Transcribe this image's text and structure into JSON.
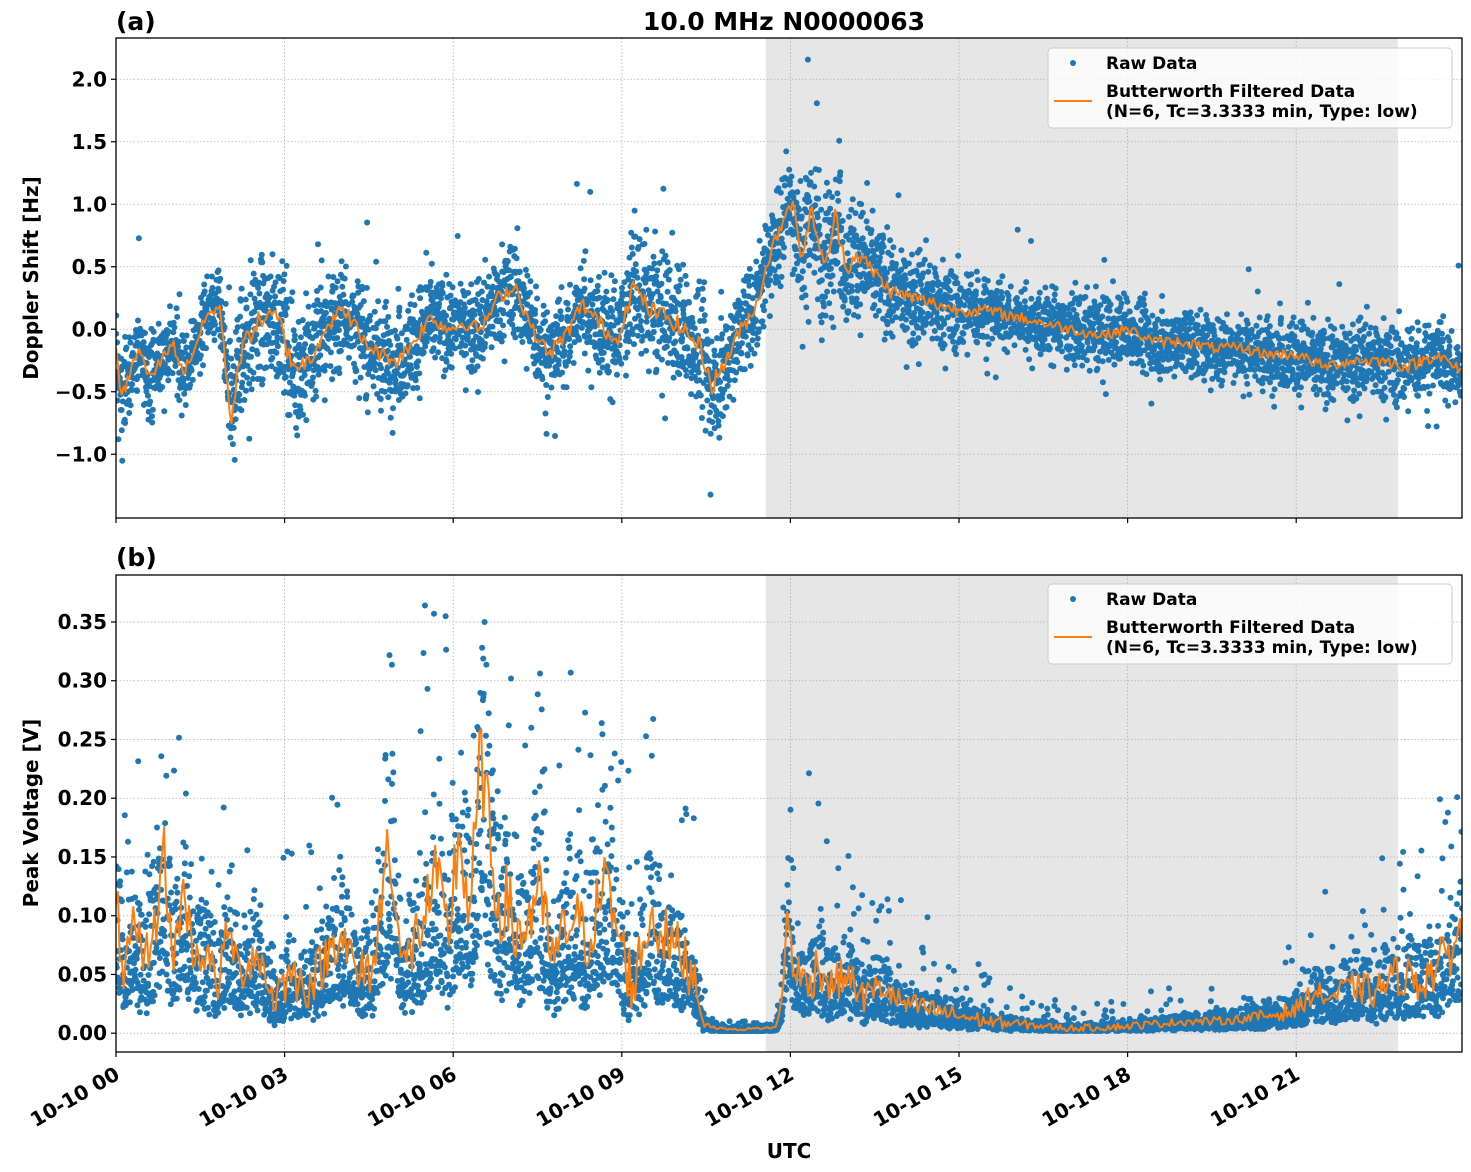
{
  "figure": {
    "title": "10.0 MHz N0000063",
    "xlabel": "UTC",
    "colors": {
      "raw": "#1f77b4",
      "filtered": "#ff7f0e",
      "shade": "#e6e6e6",
      "grid": "#b0b0b0"
    }
  },
  "chart_data": [
    {
      "type": "scatter",
      "panel_label": "(a)",
      "title": "10.0 MHz N0000063",
      "xlabel": "",
      "ylabel": "Doppler Shift [Hz]",
      "x_unit": "hours since 10-10 00 UTC",
      "xlim": [
        0,
        23.95
      ],
      "ylim": [
        -1.51,
        2.33
      ],
      "grid": true,
      "shaded_interval_hours": [
        11.56,
        22.81
      ],
      "xticks": [
        0,
        3,
        6,
        9,
        12,
        15,
        18,
        21
      ],
      "xtick_labels": [
        "10-10 00",
        "10-10 03",
        "10-10 06",
        "10-10 09",
        "10-10 12",
        "10-10 15",
        "10-10 18",
        "10-10 21"
      ],
      "yticks": [
        -1.0,
        -0.5,
        0.0,
        0.5,
        1.0,
        1.5,
        2.0
      ],
      "ytick_labels": [
        "−1.0",
        "−0.5",
        "0.0",
        "0.5",
        "1.0",
        "1.5",
        "2.0"
      ],
      "legend": {
        "position": "upper-right",
        "entries": [
          "Raw Data",
          "Butterworth Filtered Data",
          "(N=6, Tc=3.3333 min, Type: low)"
        ]
      },
      "series": [
        {
          "name": "Butterworth Filtered Data (N=6, Tc=3.3333 min, Type: low)",
          "kind": "line",
          "x": [
            0.0,
            0.1,
            0.25,
            0.4,
            0.6,
            0.8,
            1.0,
            1.2,
            1.4,
            1.6,
            1.75,
            1.85,
            1.95,
            2.05,
            2.15,
            2.3,
            2.5,
            2.7,
            2.9,
            3.1,
            3.3,
            3.5,
            3.7,
            3.9,
            4.1,
            4.4,
            4.7,
            5.0,
            5.3,
            5.6,
            5.9,
            6.2,
            6.5,
            6.8,
            7.1,
            7.4,
            7.7,
            8.0,
            8.3,
            8.6,
            8.9,
            9.2,
            9.5,
            9.8,
            10.1,
            10.4,
            10.6,
            10.8,
            11.0,
            11.2,
            11.4,
            11.6,
            11.8,
            12.0,
            12.2,
            12.4,
            12.6,
            12.8,
            13.0,
            13.2,
            13.5,
            13.8,
            14.2,
            14.6,
            15.0,
            15.5,
            16.0,
            16.5,
            17.0,
            17.5,
            18.0,
            18.5,
            19.0,
            19.5,
            20.0,
            20.5,
            21.0,
            21.5,
            22.0,
            22.5,
            23.0,
            23.5,
            23.95
          ],
          "y": [
            -0.2,
            -0.55,
            -0.35,
            -0.15,
            -0.4,
            -0.25,
            -0.1,
            -0.35,
            -0.15,
            0.1,
            0.15,
            0.18,
            -0.3,
            -0.75,
            -0.35,
            -0.1,
            0.05,
            0.1,
            0.08,
            -0.25,
            -0.3,
            -0.2,
            0.0,
            0.1,
            0.15,
            -0.1,
            -0.2,
            -0.25,
            -0.1,
            0.1,
            0.0,
            0.05,
            0.0,
            0.25,
            0.35,
            0.0,
            -0.2,
            -0.05,
            0.2,
            0.05,
            -0.1,
            0.35,
            0.15,
            0.1,
            0.0,
            -0.15,
            -0.45,
            -0.3,
            -0.1,
            0.05,
            0.2,
            0.55,
            0.8,
            1.05,
            0.6,
            0.95,
            0.45,
            0.9,
            0.5,
            0.6,
            0.45,
            0.3,
            0.25,
            0.2,
            0.15,
            0.15,
            0.1,
            0.05,
            0.0,
            -0.05,
            0.0,
            -0.1,
            -0.1,
            -0.15,
            -0.15,
            -0.2,
            -0.2,
            -0.3,
            -0.25,
            -0.25,
            -0.3,
            -0.2,
            -0.35
          ]
        },
        {
          "name": "Raw Data",
          "kind": "points",
          "spread_x": [
            0,
            1.9,
            2.1,
            6.0,
            10.5,
            11.6,
            12.4,
            13.5,
            16,
            20.5,
            23.95
          ],
          "spread_halfwidth": [
            0.3,
            0.25,
            0.5,
            0.3,
            0.45,
            0.35,
            0.55,
            0.35,
            0.25,
            0.25,
            0.3
          ]
        }
      ]
    },
    {
      "type": "scatter",
      "panel_label": "(b)",
      "xlabel": "UTC",
      "ylabel": "Peak Voltage [V]",
      "x_unit": "hours since 10-10 00 UTC",
      "xlim": [
        0,
        23.95
      ],
      "ylim": [
        -0.016,
        0.39
      ],
      "grid": true,
      "shaded_interval_hours": [
        11.56,
        22.81
      ],
      "xticks": [
        0,
        3,
        6,
        9,
        12,
        15,
        18,
        21
      ],
      "xtick_labels": [
        "10-10 00",
        "10-10 03",
        "10-10 06",
        "10-10 09",
        "10-10 12",
        "10-10 15",
        "10-10 18",
        "10-10 21"
      ],
      "yticks": [
        0.0,
        0.05,
        0.1,
        0.15,
        0.2,
        0.25,
        0.3,
        0.35
      ],
      "ytick_labels": [
        "0.00",
        "0.05",
        "0.10",
        "0.15",
        "0.20",
        "0.25",
        "0.30",
        "0.35"
      ],
      "legend": {
        "position": "upper-right",
        "entries": [
          "Raw Data",
          "Butterworth Filtered Data",
          "(N=6, Tc=3.3333 min, Type: low)"
        ]
      },
      "series": [
        {
          "name": "Butterworth Filtered Data (N=6, Tc=3.3333 min, Type: low)",
          "kind": "line",
          "x": [
            0.0,
            0.15,
            0.3,
            0.5,
            0.7,
            0.85,
            1.0,
            1.2,
            1.4,
            1.6,
            1.8,
            2.0,
            2.2,
            2.5,
            2.8,
            3.1,
            3.4,
            3.7,
            4.0,
            4.3,
            4.6,
            4.85,
            5.1,
            5.4,
            5.7,
            5.9,
            6.1,
            6.3,
            6.5,
            6.7,
            6.9,
            7.2,
            7.5,
            7.8,
            8.1,
            8.4,
            8.7,
            8.9,
            9.2,
            9.5,
            9.8,
            10.1,
            10.3,
            10.45,
            10.6,
            11.0,
            11.4,
            11.75,
            11.85,
            11.95,
            12.1,
            12.3,
            12.5,
            12.7,
            13.0,
            13.3,
            13.6,
            14.0,
            14.5,
            15.0,
            15.5,
            16.0,
            16.5,
            17.0,
            17.5,
            18.0,
            18.5,
            19.0,
            19.5,
            20.0,
            20.5,
            21.0,
            21.3,
            21.6,
            22.0,
            22.4,
            22.8,
            23.2,
            23.6,
            23.95
          ],
          "y": [
            0.11,
            0.05,
            0.085,
            0.06,
            0.09,
            0.16,
            0.06,
            0.12,
            0.065,
            0.07,
            0.04,
            0.09,
            0.05,
            0.07,
            0.03,
            0.05,
            0.04,
            0.06,
            0.09,
            0.045,
            0.06,
            0.17,
            0.05,
            0.09,
            0.13,
            0.08,
            0.17,
            0.1,
            0.24,
            0.13,
            0.11,
            0.08,
            0.12,
            0.06,
            0.1,
            0.08,
            0.13,
            0.09,
            0.04,
            0.1,
            0.08,
            0.065,
            0.05,
            0.01,
            0.005,
            0.003,
            0.004,
            0.005,
            0.03,
            0.1,
            0.05,
            0.04,
            0.06,
            0.04,
            0.05,
            0.03,
            0.04,
            0.025,
            0.02,
            0.015,
            0.01,
            0.008,
            0.006,
            0.004,
            0.005,
            0.006,
            0.008,
            0.01,
            0.01,
            0.012,
            0.015,
            0.02,
            0.035,
            0.03,
            0.04,
            0.035,
            0.05,
            0.045,
            0.06,
            0.09
          ]
        },
        {
          "name": "Raw Data",
          "kind": "points",
          "spread_x": [
            0,
            2,
            5,
            6.5,
            8,
            10.3,
            10.5,
            11.8,
            12.0,
            13,
            15,
            16.5,
            20,
            22,
            23.95
          ],
          "spread_halfwidth": [
            0.1,
            0.07,
            0.1,
            0.17,
            0.12,
            0.1,
            0.004,
            0.004,
            0.1,
            0.06,
            0.03,
            0.012,
            0.015,
            0.05,
            0.1
          ]
        }
      ]
    }
  ]
}
